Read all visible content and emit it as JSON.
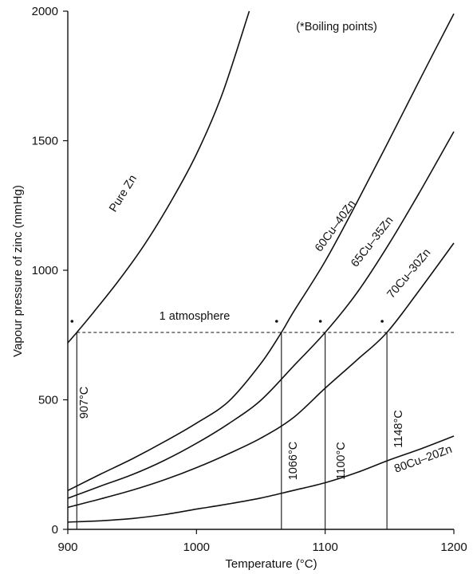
{
  "chart_data": {
    "type": "line",
    "xlabel": "Temperature (°C)",
    "ylabel": "Vapour pressure of zinc (mmHg)",
    "xlim": [
      900,
      1200
    ],
    "ylim": [
      0,
      2000
    ],
    "x_ticks": [
      900,
      1000,
      1100,
      1200
    ],
    "y_ticks": [
      0,
      500,
      1000,
      1500,
      2000
    ],
    "grid": false,
    "note": "(*Boiling points)",
    "series": [
      {
        "name": "Pure Zn",
        "x": [
          890,
          907,
          920,
          940,
          960,
          980,
          1000,
          1020,
          1041
        ],
        "y": [
          720,
          760,
          838,
          963,
          1102,
          1264,
          1448,
          1680,
          2000
        ]
      },
      {
        "name": "60Cu–40Zn",
        "x": [
          900,
          925,
          950,
          975,
          1000,
          1025,
          1050,
          1066,
          1075,
          1100,
          1125,
          1150,
          1175,
          1200
        ],
        "y": [
          150,
          212,
          272,
          338,
          410,
          494,
          640,
          760,
          836,
          1035,
          1265,
          1505,
          1750,
          1990
        ]
      },
      {
        "name": "65Cu–35Zn",
        "x": [
          900,
          925,
          950,
          975,
          1000,
          1025,
          1050,
          1075,
          1100,
          1125,
          1150,
          1175,
          1200
        ],
        "y": [
          120,
          166,
          211,
          266,
          332,
          408,
          498,
          628,
          760,
          915,
          1105,
          1315,
          1535
        ]
      },
      {
        "name": "70Cu–30Zn",
        "x": [
          900,
          925,
          950,
          975,
          1000,
          1025,
          1050,
          1075,
          1100,
          1125,
          1148,
          1175,
          1200
        ],
        "y": [
          85,
          117,
          151,
          191,
          238,
          292,
          352,
          430,
          545,
          655,
          760,
          935,
          1105
        ]
      },
      {
        "name": "80Cu–20Zn",
        "x": [
          900,
          925,
          950,
          975,
          1000,
          1025,
          1050,
          1075,
          1100,
          1125,
          1150,
          1175,
          1200
        ],
        "y": [
          28,
          33,
          42,
          57,
          78,
          98,
          121,
          150,
          180,
          220,
          268,
          312,
          360
        ]
      }
    ],
    "reference_line": {
      "label": "1 atmosphere",
      "y": 760
    },
    "boiling_points": [
      {
        "x": 907,
        "y": 760,
        "label": "907°C"
      },
      {
        "x": 1066,
        "y": 760,
        "label": "1066°C"
      },
      {
        "x": 1100,
        "y": 760,
        "label": "1100°C"
      },
      {
        "x": 1148,
        "y": 760,
        "label": "1148°C"
      }
    ]
  }
}
